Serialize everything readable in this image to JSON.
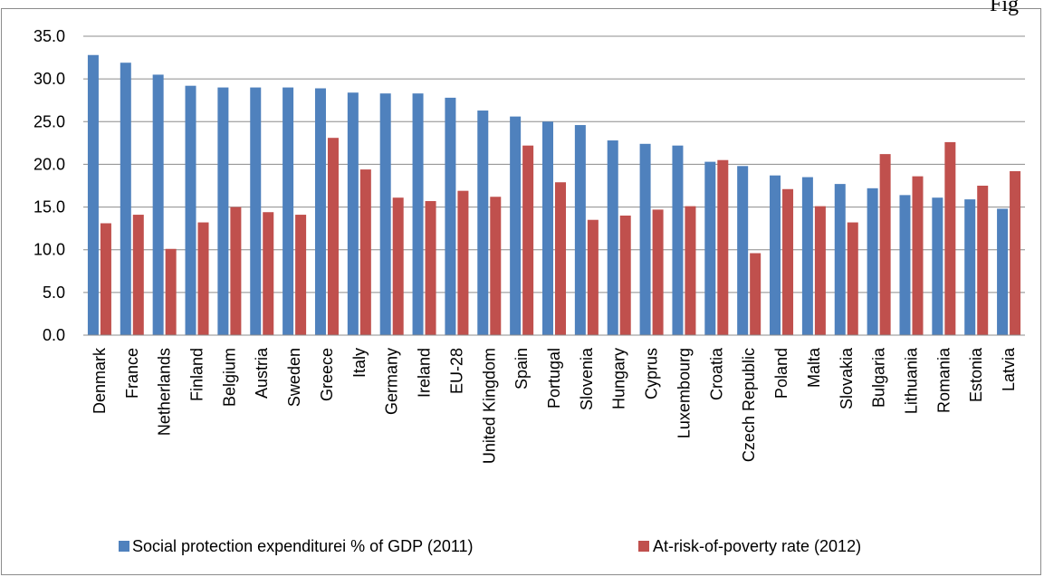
{
  "header_fragment": "Fig",
  "chart_data": {
    "type": "bar",
    "categories": [
      "Denmark",
      "France",
      "Netherlands",
      "Finland",
      "Belgium",
      "Austria",
      "Sweden",
      "Greece",
      "Italy",
      "Germany",
      "Ireland",
      "EU-28",
      "United Kingdom",
      "Spain",
      "Portugal",
      "Slovenia",
      "Hungary",
      "Cyprus",
      "Luxembourg",
      "Croatia",
      "Czech Republic",
      "Poland",
      "Malta",
      "Slovakia",
      "Bulgaria",
      "Lithuania",
      "Romania",
      "Estonia",
      "Latvia"
    ],
    "series": [
      {
        "name": "Social protection expenditurei % of GDP (2011)",
        "color": "#4f81bd",
        "values": [
          32.8,
          31.9,
          30.5,
          29.2,
          29.0,
          29.0,
          29.0,
          28.9,
          28.4,
          28.3,
          28.3,
          27.8,
          26.3,
          25.6,
          25.0,
          24.6,
          22.8,
          22.4,
          22.2,
          20.3,
          19.8,
          18.7,
          18.5,
          17.7,
          17.2,
          16.4,
          16.1,
          15.9,
          14.8
        ]
      },
      {
        "name": "At-risk-of-poverty rate (2012)",
        "color": "#c0504d",
        "values": [
          13.1,
          14.1,
          10.1,
          13.2,
          15.0,
          14.4,
          14.1,
          23.1,
          19.4,
          16.1,
          15.7,
          16.9,
          16.2,
          22.2,
          17.9,
          13.5,
          14.0,
          14.7,
          15.1,
          20.5,
          9.6,
          17.1,
          15.1,
          13.2,
          21.2,
          18.6,
          22.6,
          17.5,
          19.2
        ]
      }
    ],
    "y_ticks": [
      "0.0",
      "5.0",
      "10.0",
      "15.0",
      "20.0",
      "25.0",
      "30.0",
      "35.0"
    ],
    "ylim": [
      0,
      35
    ],
    "grid": true,
    "legend_position": "bottom"
  }
}
